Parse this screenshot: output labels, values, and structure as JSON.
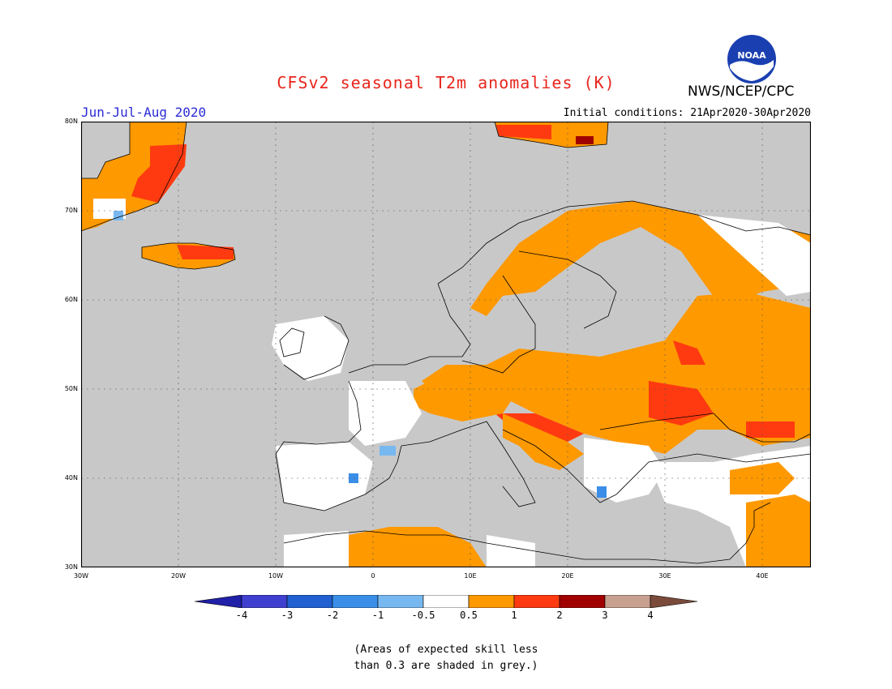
{
  "title": "CFSv2 seasonal T2m anomalies (K)",
  "agency": "NWS/NCEP/CPC",
  "logo_text": "NOAA",
  "season": "Jun-Jul-Aug 2020",
  "initial_conditions": "Initial conditions: 21Apr2020-30Apr2020",
  "map": {
    "lon_range": [
      -30,
      45
    ],
    "lat_range": [
      30,
      80
    ],
    "lat_ticks": [
      "80N",
      "70N",
      "60N",
      "50N",
      "40N",
      "30N"
    ],
    "lon_ticks": [
      "30W",
      "20W",
      "10W",
      "0",
      "10E",
      "20E",
      "30E",
      "40E"
    ],
    "gridlines": true,
    "ocean_color": "#c8c8c8"
  },
  "colorbar": {
    "labels": [
      "-4",
      "-3",
      "-2",
      "-1",
      "-0.5",
      "0.5",
      "1",
      "2",
      "3",
      "4"
    ],
    "colors": [
      "#2020a8",
      "#4040d0",
      "#2060d0",
      "#3a8ee8",
      "#78b8f0",
      "#ffffff",
      "#ff9900",
      "#ff3a10",
      "#a00000",
      "#c8a090",
      "#7a4a3a"
    ]
  },
  "note": "(Areas of expected skill less than 0.3 are shaded in grey.)"
}
